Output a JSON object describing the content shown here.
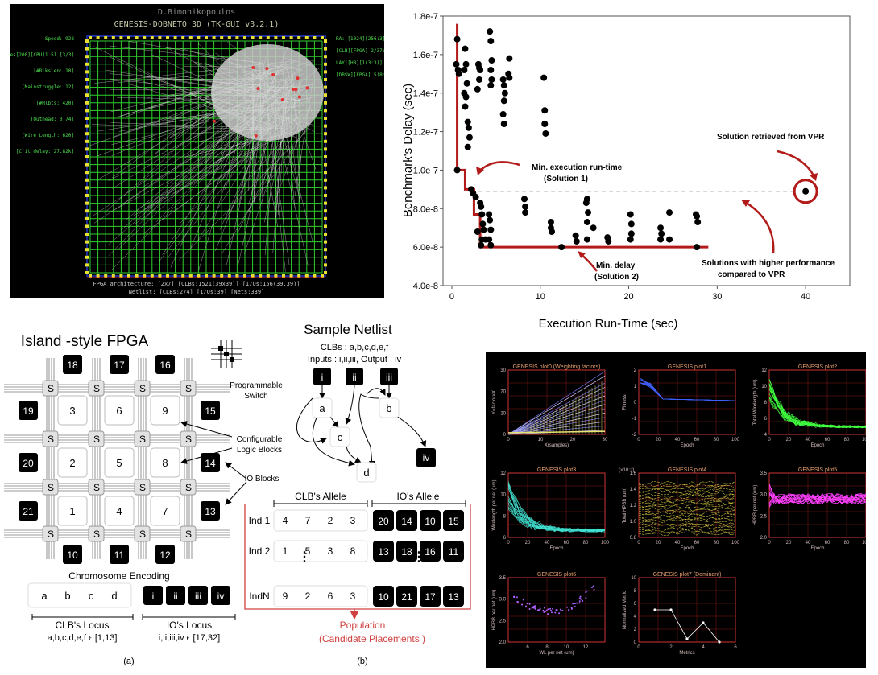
{
  "fpga_screen": {
    "author": "D.Bimonikopoulos",
    "title": "GENESIS-DOBNETO 3D (TK-GUI v3.2.1)",
    "left_labels": [
      "Speed: 928",
      "Frames[200][CPU]1.51 [3/3]",
      "[#Blkslen: 10]",
      "[Mainstruggle: 12]",
      "[#Hlbts: 420]",
      "[Outhead: 0.74]",
      "[Wire Length: 620]",
      "[Crit delay: 27.82k]"
    ],
    "right_labels": [
      "RA: [1024][256:3]",
      "[CLB][FPGA] 2/37:32]",
      "LAY][HB][1(3:3)]",
      "[DBSW][FPGA] 5(8:3)"
    ],
    "footer1": "FPGA architecture: [2x7] [CLBs:1521(39x39)] [I/Os:156(39,39)]",
    "footer2": "Netlist: [CLBs:274] [I/Os:39] [Nets:339]"
  },
  "chart_data": [
    {
      "type": "scatter",
      "title": "",
      "xlabel": "Execution Run-Time (sec)",
      "ylabel": "Benchmark's Delay (sec)",
      "xlim": [
        -1,
        45
      ],
      "ylim": [
        4e-08,
        1.8e-07
      ],
      "x_ticks": [
        "0",
        "10",
        "20",
        "30",
        "40"
      ],
      "y_ticks": [
        "4.0e-8",
        "6.0e-8",
        "8.0e-8",
        "1.0e-7",
        "1.2e-7",
        "1.4e-7",
        "1.6e-7",
        "1.8e-7"
      ],
      "grid": false,
      "points": [
        [
          0.6,
          1.68e-07
        ],
        [
          0.5,
          1.55e-07
        ],
        [
          0.7,
          1.52e-07
        ],
        [
          0.8,
          1.5e-07
        ],
        [
          0.6,
          1e-07
        ],
        [
          1.5,
          1.63e-07
        ],
        [
          1.6,
          1.55e-07
        ],
        [
          1.4,
          1.52e-07
        ],
        [
          1.7,
          1.45e-07
        ],
        [
          1.4,
          1.4e-07
        ],
        [
          1.6,
          1.38e-07
        ],
        [
          1.5,
          1.33e-07
        ],
        [
          1.8,
          1.25e-07
        ],
        [
          1.9,
          1.22e-07
        ],
        [
          2.0,
          1.17e-07
        ],
        [
          1.8,
          1.12e-07
        ],
        [
          3.0,
          1.55e-07
        ],
        [
          3.1,
          1.53e-07
        ],
        [
          3.2,
          1.52e-07
        ],
        [
          3.1,
          1.47e-07
        ],
        [
          2.9,
          1.42e-07
        ],
        [
          4.3,
          1.72e-07
        ],
        [
          4.4,
          1.67e-07
        ],
        [
          4.5,
          1.57e-07
        ],
        [
          4.4,
          1.52e-07
        ],
        [
          4.5,
          1.47e-07
        ],
        [
          4.4,
          1.44e-07
        ],
        [
          5.8,
          1.47e-07
        ],
        [
          5.9,
          1.44e-07
        ],
        [
          6.0,
          1.4e-07
        ],
        [
          5.9,
          1.36e-07
        ],
        [
          5.8,
          1.29e-07
        ],
        [
          5.9,
          1.24e-07
        ],
        [
          6.5,
          1.58e-07
        ],
        [
          6.4,
          1.5e-07
        ],
        [
          6.5,
          1.48e-07
        ],
        [
          10.4,
          1.48e-07
        ],
        [
          10.5,
          1.31e-07
        ],
        [
          10.5,
          1.24e-07
        ],
        [
          10.6,
          1.19e-07
        ],
        [
          2.2,
          9e-08
        ],
        [
          2.4,
          8.8e-08
        ],
        [
          2.7,
          8.6e-08
        ],
        [
          3.2,
          8.3e-08
        ],
        [
          3.3,
          8.1e-08
        ],
        [
          3.4,
          7.7e-08
        ],
        [
          3.5,
          7.2e-08
        ],
        [
          3.6,
          6.9e-08
        ],
        [
          3.4,
          6.4e-08
        ],
        [
          3.8,
          6.4e-08
        ],
        [
          2.9,
          6.8e-08
        ],
        [
          3.3,
          6.1e-08
        ],
        [
          4.2,
          7.7e-08
        ],
        [
          4.3,
          7.4e-08
        ],
        [
          4.4,
          6.9e-08
        ],
        [
          4.2,
          6.4e-08
        ],
        [
          4.4,
          6.1e-08
        ],
        [
          8.2,
          8.5e-08
        ],
        [
          8.3,
          8.1e-08
        ],
        [
          8.3,
          7.8e-08
        ],
        [
          11.2,
          7.3e-08
        ],
        [
          11.2,
          7e-08
        ],
        [
          11.3,
          6.8e-08
        ],
        [
          12.4,
          6e-08
        ],
        [
          14.0,
          6.6e-08
        ],
        [
          14.1,
          6.3e-08
        ],
        [
          15.3,
          8.5e-08
        ],
        [
          15.2,
          8.3e-08
        ],
        [
          15.4,
          7.8e-08
        ],
        [
          15.3,
          7.3e-08
        ],
        [
          15.3,
          6.4e-08
        ],
        [
          16.0,
          7e-08
        ],
        [
          17.6,
          6.5e-08
        ],
        [
          17.7,
          6.3e-08
        ],
        [
          20.2,
          7.7e-08
        ],
        [
          20.3,
          7.2e-08
        ],
        [
          20.3,
          6.7e-08
        ],
        [
          20.2,
          6.4e-08
        ],
        [
          23.6,
          7e-08
        ],
        [
          23.7,
          6.7e-08
        ],
        [
          23.6,
          6.4e-08
        ],
        [
          24.6,
          7.8e-08
        ],
        [
          24.6,
          6.4e-08
        ],
        [
          27.6,
          7.7e-08
        ],
        [
          27.7,
          7.6e-08
        ],
        [
          27.8,
          7.3e-08
        ],
        [
          27.7,
          6e-08
        ]
      ],
      "front_steps": [
        [
          0.6,
          1.76e-07
        ],
        [
          0.6,
          1e-07
        ],
        [
          1.5,
          1e-07
        ],
        [
          1.5,
          9e-08
        ],
        [
          2.5,
          9e-08
        ],
        [
          2.5,
          7.7e-08
        ],
        [
          3.2,
          7.7e-08
        ],
        [
          3.2,
          6e-08
        ],
        [
          29.0,
          6e-08
        ]
      ],
      "vpr_point": [
        40,
        8.9e-08
      ],
      "vpr_threshold": 8.9e-08,
      "annotations": [
        "Min. execution run-time",
        "(Solution 1)",
        "Min. delay",
        "(Solution 2)",
        "Solution retrieved from VPR",
        "Solutions with higher performance",
        "compared to VPR"
      ]
    },
    {
      "type": "line",
      "title": "GENESIS plot0 (Weighting factors)",
      "xlabel": "X(samples)",
      "ylabel": "Y=factor×X",
      "xlim": [
        0,
        30
      ],
      "ylim": [
        0,
        30
      ],
      "x_ticks": [
        "0",
        "10",
        "20",
        "30"
      ],
      "y_ticks": [
        "0",
        "10",
        "20",
        "30"
      ]
    },
    {
      "type": "line",
      "title": "GENESIS plot1",
      "xlabel": "Epoch",
      "ylabel": "Fitness",
      "xlim": [
        0,
        100
      ],
      "ylim": [
        -2,
        2
      ],
      "x_ticks": [
        "0",
        "20",
        "40",
        "60",
        "80",
        "100"
      ],
      "y_ticks": [
        "-2",
        "-1",
        "0",
        "1",
        "2"
      ]
    },
    {
      "type": "line",
      "title": "GENESIS plot2",
      "xlabel": "Epoch",
      "ylabel": "Total Wirelength (um)",
      "xlim": [
        0,
        100
      ],
      "ylim": [
        4,
        12
      ],
      "x_ticks": [
        "0",
        "20",
        "40",
        "60",
        "80",
        "100"
      ],
      "y_ticks": [
        "4",
        "6",
        "8",
        "10",
        "12"
      ]
    },
    {
      "type": "line",
      "title": "GENESIS plot3",
      "xlabel": "Epoch",
      "ylabel": "Wirelength per net (um)",
      "xlim": [
        0,
        100
      ],
      "ylim": [
        6,
        12
      ],
      "x_ticks": [
        "0",
        "20",
        "40",
        "60",
        "80",
        "100"
      ],
      "y_ticks": [
        "6",
        "8",
        "10",
        "12"
      ]
    },
    {
      "type": "line",
      "title": "GENESIS plot4",
      "xlabel": "Epoch",
      "ylabel": "Total HPBB (um)",
      "xlim": [
        0,
        100
      ],
      "ylim": [
        0.8,
        1.6
      ],
      "x_ticks": [
        "0",
        "20",
        "40",
        "60",
        "80",
        "100"
      ],
      "y_ticks": [
        "0.8",
        "1.0",
        "1.2",
        "1.4",
        "1.6"
      ],
      "scale_note": "(×10⁻²)"
    },
    {
      "type": "line",
      "title": "GENESIS plot5",
      "xlabel": "Epoch",
      "ylabel": "HPBB per net (um)",
      "xlim": [
        0,
        100
      ],
      "ylim": [
        2.0,
        3.5
      ],
      "x_ticks": [
        "0",
        "20",
        "40",
        "60",
        "80",
        "100"
      ],
      "y_ticks": [
        "2.0",
        "2.5",
        "3.0",
        "3.5"
      ]
    },
    {
      "type": "scatter",
      "title": "GENESIS plot6",
      "xlabel": "WL per net (um)",
      "ylabel": "HPBB per net (um)",
      "xlim": [
        4,
        14
      ],
      "ylim": [
        2.0,
        3.5
      ],
      "x_ticks": [
        "6",
        "8",
        "10",
        "12"
      ],
      "y_ticks": [
        "2.0",
        "2.5",
        "3.0",
        "3.5"
      ]
    },
    {
      "type": "line",
      "title": "GENESIS plot7 (Dominant)",
      "xlabel": "Metrics",
      "ylabel": "Normalized Metric",
      "xlim": [
        0,
        6
      ],
      "ylim": [
        0,
        10
      ],
      "x_ticks": [
        "0",
        "2",
        "4",
        "6"
      ],
      "y_ticks": [
        "0",
        "2",
        "4",
        "6",
        "8",
        "10"
      ],
      "x": [
        1,
        2,
        3,
        4,
        5
      ],
      "values": [
        5,
        5,
        0.5,
        3,
        0
      ]
    }
  ],
  "island": {
    "title": "Island -style FPGA",
    "io_top": [
      "18",
      "17",
      "16"
    ],
    "io_left": [
      "19",
      "20",
      "21"
    ],
    "io_right": [
      "15",
      "14",
      "13"
    ],
    "io_bottom": [
      "10",
      "11",
      "12"
    ],
    "clb_rows": [
      [
        "3",
        "6",
        "9"
      ],
      [
        "2",
        "5",
        "8"
      ],
      [
        "1",
        "4",
        "7"
      ]
    ],
    "switch_label": "S",
    "prog_switch": [
      "Programmable",
      "Switch"
    ],
    "config_logic": [
      "Configurable",
      "Logic Blocks"
    ],
    "io_blocks": "IO Blocks",
    "chromosome_title": "Chromosome Encoding",
    "clb_genes": [
      "a",
      "b",
      "c",
      "d"
    ],
    "io_genes": [
      "i",
      "ii",
      "iii",
      "iv"
    ],
    "clb_locus": "CLB's Locus",
    "clb_locus_range": "a,b,c,d,e,f ϵ [1,13]",
    "io_locus": "IO's Locus",
    "io_locus_range": "i,ii,iii,iv ϵ [17,32]",
    "caption_a": "(a)"
  },
  "netlist": {
    "title": "Sample Netlist",
    "clbs": "CLBs : a,b,c,d,e,f",
    "io_line": "Inputs : i,ii,iii, Output : iv",
    "inputs": [
      "i",
      "ii",
      "iii"
    ],
    "nodes": [
      "a",
      "b",
      "c",
      "d"
    ],
    "output": "iv",
    "clb_allele": "CLB's Allele",
    "io_allele": "IO's Allele",
    "individuals": [
      {
        "name": "Ind 1",
        "clb": [
          "4",
          "7",
          "2",
          "3"
        ],
        "io": [
          "20",
          "14",
          "10",
          "15"
        ]
      },
      {
        "name": "Ind 2",
        "clb": [
          "1",
          "5",
          "3",
          "8"
        ],
        "io": [
          "13",
          "18",
          "16",
          "11"
        ]
      },
      {
        "name": "IndN",
        "clb": [
          "9",
          "2",
          "6",
          "3"
        ],
        "io": [
          "10",
          "21",
          "17",
          "13"
        ]
      }
    ],
    "population": "Population",
    "candidates": "(Candidate Placements    )",
    "caption_b": "(b)"
  }
}
